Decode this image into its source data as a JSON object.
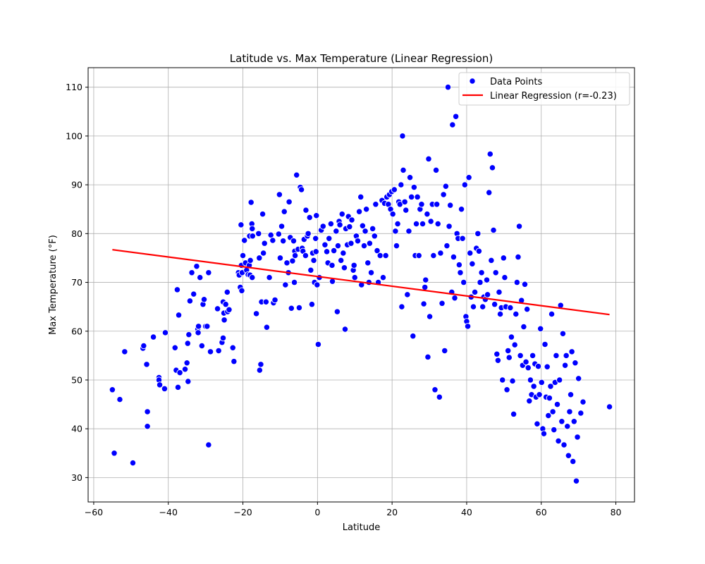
{
  "chart_data": {
    "type": "scatter",
    "title": "Latitude vs. Max Temperature (Linear Regression)",
    "xlabel": "Latitude",
    "ylabel": "Max Temperature (°F)",
    "xlim": [
      -61.5,
      85
    ],
    "ylim": [
      25,
      114
    ],
    "xticks": [
      -60,
      -40,
      -20,
      0,
      20,
      40,
      60,
      80
    ],
    "yticks": [
      30,
      40,
      50,
      60,
      70,
      80,
      90,
      100,
      110
    ],
    "grid": true,
    "legend_position": "top-right",
    "legend": {
      "points_label": "Data Points",
      "line_label": "Linear Regression (r=-0.23)"
    },
    "colors": {
      "points": "#0000ff",
      "points_edge": "#ffffff",
      "line": "#ff0000",
      "grid": "#b0b0b0"
    },
    "regression": {
      "x": [
        -55,
        78.3
      ],
      "y": [
        76.7,
        63.4
      ]
    },
    "points": [
      [
        -55,
        48
      ],
      [
        -54.5,
        35
      ],
      [
        -53,
        46
      ],
      [
        -51.7,
        55.8
      ],
      [
        -49.5,
        33
      ],
      [
        -46.8,
        56.5
      ],
      [
        -46.6,
        57
      ],
      [
        -45.8,
        53.2
      ],
      [
        -45.6,
        43.5
      ],
      [
        -45.6,
        40.5
      ],
      [
        -44,
        58.8
      ],
      [
        -42.5,
        50.5
      ],
      [
        -42.5,
        50
      ],
      [
        -42.3,
        49
      ],
      [
        -41,
        48.2
      ],
      [
        -40.8,
        59.7
      ],
      [
        -38.2,
        56.6
      ],
      [
        -37.9,
        52
      ],
      [
        -37.6,
        68.5
      ],
      [
        -37.4,
        48.5
      ],
      [
        -37.2,
        63.3
      ],
      [
        -36.9,
        51.5
      ],
      [
        -35.5,
        52.2
      ],
      [
        -35,
        53.5
      ],
      [
        -34.8,
        57.5
      ],
      [
        -34.7,
        49.7
      ],
      [
        -34.5,
        59.3
      ],
      [
        -34.2,
        66.2
      ],
      [
        -33.7,
        72
      ],
      [
        -33.2,
        67.6
      ],
      [
        -32.4,
        73.3
      ],
      [
        -32.1,
        60.4
      ],
      [
        -32,
        59.7
      ],
      [
        -31.9,
        61
      ],
      [
        -31.5,
        71
      ],
      [
        -31,
        57
      ],
      [
        -30.7,
        65.5
      ],
      [
        -30.4,
        66.5
      ],
      [
        -30,
        61
      ],
      [
        -29.6,
        61
      ],
      [
        -29.2,
        72
      ],
      [
        -29.2,
        36.7
      ],
      [
        -28.7,
        55.8
      ],
      [
        -26.8,
        64.6
      ],
      [
        -26.5,
        56
      ],
      [
        -25.6,
        57.7
      ],
      [
        -25.3,
        58.6
      ],
      [
        -25.3,
        66
      ],
      [
        -25.1,
        63.7
      ],
      [
        -25,
        62.3
      ],
      [
        -24.6,
        65.5
      ],
      [
        -24.2,
        68
      ],
      [
        -24.1,
        64
      ],
      [
        -23.7,
        64.4
      ],
      [
        -22.7,
        56.6
      ],
      [
        -22.4,
        53.8
      ],
      [
        -21.2,
        72
      ],
      [
        -21,
        71.5
      ],
      [
        -20.7,
        69
      ],
      [
        -20.5,
        81.8
      ],
      [
        -20.4,
        73.5
      ],
      [
        -20.3,
        68.3
      ],
      [
        -20.2,
        72
      ],
      [
        -20,
        75.5
      ],
      [
        -19.6,
        78.6
      ],
      [
        -19.3,
        74
      ],
      [
        -19,
        72.5
      ],
      [
        -18.6,
        71.6
      ],
      [
        -18.3,
        73.5
      ],
      [
        -18.2,
        79.5
      ],
      [
        -18.1,
        71.5
      ],
      [
        -18,
        74.5
      ],
      [
        -17.8,
        86.4
      ],
      [
        -17.6,
        82
      ],
      [
        -17.5,
        81
      ],
      [
        -17.5,
        71
      ],
      [
        -17.4,
        79.5
      ],
      [
        -16.4,
        63.6
      ],
      [
        -15.8,
        80
      ],
      [
        -15.6,
        75
      ],
      [
        -15.5,
        52
      ],
      [
        -15.2,
        53.2
      ],
      [
        -15,
        66
      ],
      [
        -14.7,
        84
      ],
      [
        -14.5,
        76
      ],
      [
        -14.2,
        78
      ],
      [
        -13.8,
        66
      ],
      [
        -13.6,
        60.8
      ],
      [
        -12.9,
        71
      ],
      [
        -12.5,
        79.7
      ],
      [
        -12,
        78.6
      ],
      [
        -11.8,
        65.8
      ],
      [
        -11.4,
        66.4
      ],
      [
        -10.4,
        79.9
      ],
      [
        -10.2,
        88
      ],
      [
        -10,
        75
      ],
      [
        -9.6,
        81.5
      ],
      [
        -9.2,
        78.5
      ],
      [
        -8.9,
        84.5
      ],
      [
        -8.6,
        69.5
      ],
      [
        -8.2,
        74
      ],
      [
        -7.8,
        72
      ],
      [
        -7.6,
        86.5
      ],
      [
        -7.3,
        79.2
      ],
      [
        -7,
        64.7
      ],
      [
        -6.7,
        74.4
      ],
      [
        -6.4,
        78.5
      ],
      [
        -6.2,
        70
      ],
      [
        -6.1,
        76.4
      ],
      [
        -6,
        75.5
      ],
      [
        -5.6,
        92
      ],
      [
        -5.2,
        76.8
      ],
      [
        -4.9,
        64.8
      ],
      [
        -4.6,
        89.5
      ],
      [
        -4.3,
        89
      ],
      [
        -4.1,
        77
      ],
      [
        -3.9,
        76.4
      ],
      [
        -3.6,
        78.8
      ],
      [
        -3.2,
        75.5
      ],
      [
        -3.1,
        84.8
      ],
      [
        -2.7,
        79.5
      ],
      [
        -2.5,
        80
      ],
      [
        -2.1,
        83.3
      ],
      [
        -1.8,
        72.5
      ],
      [
        -1.5,
        65.5
      ],
      [
        -1.3,
        76
      ],
      [
        -1,
        74.5
      ],
      [
        -0.8,
        70
      ],
      [
        -0.5,
        79
      ],
      [
        -0.4,
        76.3
      ],
      [
        -0.3,
        83.7
      ],
      [
        -0.1,
        69.5
      ],
      [
        0.2,
        57.3
      ],
      [
        0.5,
        71
      ],
      [
        1,
        80.7
      ],
      [
        1.5,
        81.5
      ],
      [
        2,
        77.7
      ],
      [
        2.5,
        76.3
      ],
      [
        2.8,
        74
      ],
      [
        3.1,
        79
      ],
      [
        3.6,
        82
      ],
      [
        3.9,
        73.5
      ],
      [
        4,
        70.2
      ],
      [
        4.4,
        76.5
      ],
      [
        5,
        80.5
      ],
      [
        5.3,
        64
      ],
      [
        5.5,
        77.5
      ],
      [
        5.8,
        82.5
      ],
      [
        6,
        81.8
      ],
      [
        6.3,
        74.5
      ],
      [
        6.6,
        84
      ],
      [
        6.9,
        76
      ],
      [
        7.2,
        73
      ],
      [
        7.4,
        60.4
      ],
      [
        7.6,
        81
      ],
      [
        8,
        77.7
      ],
      [
        8.3,
        83.5
      ],
      [
        8.6,
        81.4
      ],
      [
        9,
        78
      ],
      [
        9.2,
        82.8
      ],
      [
        9.6,
        72.5
      ],
      [
        9.8,
        73.5
      ],
      [
        10,
        71
      ],
      [
        10.4,
        79.5
      ],
      [
        10.8,
        78.5
      ],
      [
        11.2,
        84.5
      ],
      [
        11.6,
        87.5
      ],
      [
        11.8,
        69.5
      ],
      [
        12.1,
        81.6
      ],
      [
        12.5,
        77.5
      ],
      [
        12.8,
        80.5
      ],
      [
        13.1,
        85
      ],
      [
        13.5,
        74
      ],
      [
        13.8,
        70
      ],
      [
        14,
        78
      ],
      [
        14.4,
        72
      ],
      [
        14.8,
        81
      ],
      [
        15.3,
        79.5
      ],
      [
        15.6,
        86
      ],
      [
        16,
        76.5
      ],
      [
        16.3,
        70
      ],
      [
        16.8,
        75.5
      ],
      [
        17.3,
        86.8
      ],
      [
        17.6,
        71
      ],
      [
        18,
        86.2
      ],
      [
        18.3,
        75.5
      ],
      [
        18.6,
        87.5
      ],
      [
        19,
        86
      ],
      [
        19.3,
        88
      ],
      [
        19.6,
        85
      ],
      [
        19.9,
        88.6
      ],
      [
        20.2,
        84
      ],
      [
        20.6,
        89
      ],
      [
        20.9,
        80.5
      ],
      [
        21.2,
        77.5
      ],
      [
        21.5,
        82
      ],
      [
        21.8,
        86.5
      ],
      [
        22.1,
        86
      ],
      [
        22.4,
        90
      ],
      [
        22.6,
        65
      ],
      [
        22.8,
        100
      ],
      [
        23,
        93
      ],
      [
        23.4,
        86.5
      ],
      [
        23.7,
        84.8
      ],
      [
        24.1,
        67.5
      ],
      [
        24.5,
        80.5
      ],
      [
        24.8,
        91.5
      ],
      [
        25.2,
        87.5
      ],
      [
        25.6,
        59
      ],
      [
        25.9,
        89.5
      ],
      [
        26.2,
        75.5
      ],
      [
        26.5,
        82
      ],
      [
        26.8,
        87.5
      ],
      [
        27.2,
        75.5
      ],
      [
        27.5,
        85
      ],
      [
        27.9,
        86
      ],
      [
        28.2,
        82
      ],
      [
        28.5,
        65.6
      ],
      [
        28.8,
        69
      ],
      [
        29,
        70.5
      ],
      [
        29.4,
        84
      ],
      [
        29.6,
        54.7
      ],
      [
        29.8,
        95.3
      ],
      [
        30.1,
        63
      ],
      [
        30.4,
        82.5
      ],
      [
        30.8,
        86
      ],
      [
        31.1,
        75.5
      ],
      [
        31.5,
        48
      ],
      [
        31.8,
        93
      ],
      [
        32,
        86
      ],
      [
        32.3,
        82
      ],
      [
        32.7,
        46.5
      ],
      [
        33,
        76
      ],
      [
        33.4,
        65.7
      ],
      [
        33.8,
        88
      ],
      [
        34.1,
        56
      ],
      [
        34.4,
        89.7
      ],
      [
        34.7,
        77.5
      ],
      [
        35,
        110
      ],
      [
        35.3,
        81.5
      ],
      [
        35.6,
        85.8
      ],
      [
        36,
        68
      ],
      [
        36.2,
        102.3
      ],
      [
        36.5,
        75.2
      ],
      [
        36.8,
        66.8
      ],
      [
        37.1,
        104
      ],
      [
        37.4,
        80
      ],
      [
        37.7,
        79
      ],
      [
        38,
        73.6
      ],
      [
        38.3,
        72
      ],
      [
        38.6,
        85
      ],
      [
        38.9,
        79
      ],
      [
        39.2,
        70
      ],
      [
        39.5,
        90
      ],
      [
        39.8,
        63
      ],
      [
        40,
        62
      ],
      [
        40.3,
        61
      ],
      [
        40.6,
        91.5
      ],
      [
        40.9,
        76
      ],
      [
        41.2,
        67
      ],
      [
        41.5,
        73.8
      ],
      [
        41.8,
        65
      ],
      [
        42.2,
        68
      ],
      [
        42.6,
        77
      ],
      [
        43,
        80
      ],
      [
        43.3,
        76.4
      ],
      [
        43.6,
        70
      ],
      [
        44,
        72
      ],
      [
        44.3,
        65
      ],
      [
        44.6,
        67
      ],
      [
        45,
        66.5
      ],
      [
        45.4,
        70.5
      ],
      [
        45.6,
        67.5
      ],
      [
        46,
        88.4
      ],
      [
        46.3,
        96.3
      ],
      [
        46.6,
        74.5
      ],
      [
        46.9,
        93.5
      ],
      [
        47.2,
        80.7
      ],
      [
        47.5,
        65.5
      ],
      [
        47.8,
        72
      ],
      [
        48.1,
        55.3
      ],
      [
        48.4,
        54
      ],
      [
        48.7,
        68
      ],
      [
        49,
        63.5
      ],
      [
        49.3,
        64.8
      ],
      [
        49.6,
        50
      ],
      [
        49.9,
        75
      ],
      [
        50.2,
        71
      ],
      [
        50.5,
        65
      ],
      [
        50.8,
        48
      ],
      [
        51.1,
        56
      ],
      [
        51.4,
        54.6
      ],
      [
        51.7,
        64.8
      ],
      [
        52,
        58.8
      ],
      [
        52.3,
        49.8
      ],
      [
        52.6,
        43
      ],
      [
        52.9,
        57.2
      ],
      [
        53.2,
        63.5
      ],
      [
        53.5,
        70
      ],
      [
        53.8,
        75.2
      ],
      [
        54.1,
        81.5
      ],
      [
        54.4,
        55
      ],
      [
        54.7,
        66.3
      ],
      [
        55,
        53
      ],
      [
        55.3,
        60.9
      ],
      [
        55.6,
        69.6
      ],
      [
        55.9,
        53.7
      ],
      [
        56.2,
        64.5
      ],
      [
        56.5,
        52.5
      ],
      [
        56.8,
        45.7
      ],
      [
        57.1,
        50
      ],
      [
        57.4,
        47
      ],
      [
        57.7,
        55
      ],
      [
        58,
        48.7
      ],
      [
        58.3,
        53.3
      ],
      [
        58.6,
        46.5
      ],
      [
        58.9,
        41
      ],
      [
        59.2,
        52.8
      ],
      [
        59.5,
        47
      ],
      [
        59.8,
        60.5
      ],
      [
        60.1,
        49.5
      ],
      [
        60.4,
        40
      ],
      [
        60.7,
        39
      ],
      [
        61,
        57.3
      ],
      [
        61.3,
        46.5
      ],
      [
        61.6,
        52.7
      ],
      [
        61.9,
        42.7
      ],
      [
        62.2,
        46.3
      ],
      [
        62.5,
        48.7
      ],
      [
        62.8,
        63.5
      ],
      [
        63.1,
        43.5
      ],
      [
        63.4,
        39.8
      ],
      [
        63.7,
        49.5
      ],
      [
        64,
        55
      ],
      [
        64.3,
        45
      ],
      [
        64.6,
        37.5
      ],
      [
        64.9,
        50
      ],
      [
        65.2,
        65.3
      ],
      [
        65.5,
        41.5
      ],
      [
        65.8,
        59.5
      ],
      [
        66.1,
        36.7
      ],
      [
        66.4,
        53
      ],
      [
        66.7,
        55
      ],
      [
        67,
        40.5
      ],
      [
        67.3,
        34.5
      ],
      [
        67.6,
        43.5
      ],
      [
        67.9,
        47
      ],
      [
        68.2,
        55.8
      ],
      [
        68.5,
        33.3
      ],
      [
        68.8,
        41.5
      ],
      [
        69.1,
        53.5
      ],
      [
        69.4,
        29.3
      ],
      [
        69.7,
        38.3
      ],
      [
        70,
        50.3
      ],
      [
        70.6,
        43.2
      ],
      [
        71.2,
        45.5
      ],
      [
        78.3,
        44.5
      ]
    ]
  }
}
